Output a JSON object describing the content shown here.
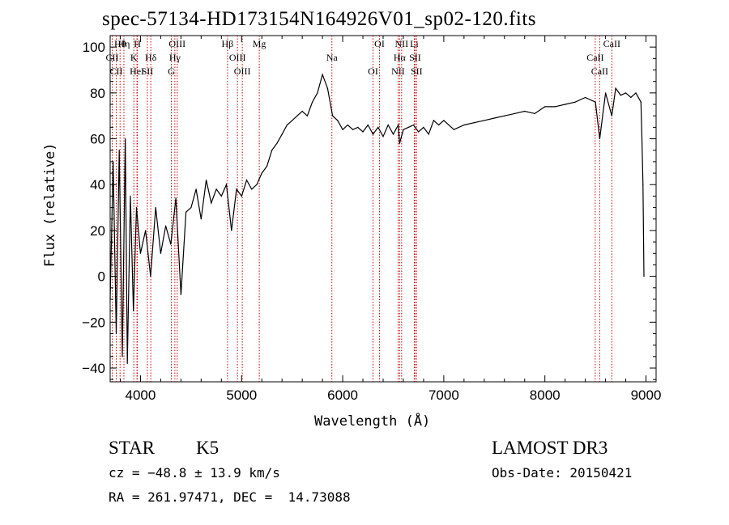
{
  "chart_data": {
    "type": "line",
    "title": "spec-57134-HD173154N164926V01_sp02-120.fits",
    "xlabel": "Wavelength (Å)",
    "ylabel": "Flux (relative)",
    "xlim": [
      3700,
      9100
    ],
    "ylim": [
      -46,
      105
    ],
    "x_ticks": [
      4000,
      5000,
      6000,
      7000,
      8000,
      9000
    ],
    "y_ticks": [
      -40,
      -20,
      0,
      20,
      40,
      60,
      80,
      100
    ],
    "grid": false,
    "series": [
      {
        "name": "flux",
        "x": [
          3700,
          3730,
          3760,
          3790,
          3820,
          3850,
          3870,
          3900,
          3930,
          3960,
          4000,
          4050,
          4100,
          4150,
          4200,
          4250,
          4300,
          4350,
          4400,
          4450,
          4500,
          4550,
          4600,
          4650,
          4700,
          4750,
          4800,
          4850,
          4900,
          4950,
          5000,
          5050,
          5100,
          5150,
          5200,
          5250,
          5300,
          5350,
          5400,
          5450,
          5500,
          5550,
          5600,
          5650,
          5700,
          5750,
          5800,
          5850,
          5900,
          5950,
          6000,
          6050,
          6100,
          6150,
          6200,
          6250,
          6300,
          6350,
          6400,
          6450,
          6500,
          6550,
          6563,
          6600,
          6650,
          6700,
          6750,
          6800,
          6850,
          6900,
          6950,
          7000,
          7100,
          7200,
          7300,
          7400,
          7500,
          7600,
          7700,
          7800,
          7900,
          8000,
          8100,
          8200,
          8300,
          8400,
          8500,
          8542,
          8600,
          8662,
          8700,
          8750,
          8800,
          8850,
          8900,
          8950,
          8960,
          8970,
          8980
        ],
        "y": [
          -10,
          50,
          -25,
          55,
          -35,
          60,
          -38,
          35,
          -15,
          30,
          10,
          20,
          0,
          30,
          10,
          22,
          14,
          34,
          -8,
          28,
          30,
          38,
          25,
          42,
          32,
          38,
          35,
          40,
          20,
          38,
          35,
          42,
          38,
          40,
          45,
          48,
          55,
          58,
          62,
          66,
          68,
          70,
          72,
          70,
          76,
          80,
          88,
          82,
          70,
          68,
          64,
          66,
          64,
          65,
          63,
          66,
          62,
          65,
          61,
          66,
          62,
          66,
          58,
          64,
          65,
          66,
          63,
          65,
          62,
          68,
          66,
          68,
          64,
          66,
          67,
          68,
          69,
          70,
          71,
          72,
          71,
          74,
          74,
          75,
          76,
          78,
          76,
          60,
          80,
          70,
          82,
          79,
          80,
          78,
          80,
          76,
          60,
          40,
          0
        ]
      }
    ],
    "spectral_lines": [
      {
        "label": "Hθ",
        "x": 3798
      },
      {
        "label": "CII",
        "x": 3720
      },
      {
        "label": "CII",
        "x": 3760
      },
      {
        "label": "Hη",
        "x": 3836
      },
      {
        "label": "K",
        "x": 3934
      },
      {
        "label": "HeI",
        "x": 3965
      },
      {
        "label": "H",
        "x": 3969
      },
      {
        "label": "Hδ",
        "x": 4102
      },
      {
        "label": "SII",
        "x": 4068
      },
      {
        "label": "OIII",
        "x": 4363
      },
      {
        "label": "Hγ",
        "x": 4340
      },
      {
        "label": "G",
        "x": 4305
      },
      {
        "label": "Hβ",
        "x": 4861
      },
      {
        "label": "OIII",
        "x": 4959
      },
      {
        "label": "OIII",
        "x": 5007
      },
      {
        "label": "Mg",
        "x": 5175
      },
      {
        "label": "Na",
        "x": 5893
      },
      {
        "label": "OI",
        "x": 6300
      },
      {
        "label": "OI",
        "x": 6364
      },
      {
        "label": "Hα",
        "x": 6563
      },
      {
        "label": "NII",
        "x": 6548
      },
      {
        "label": "NII",
        "x": 6583
      },
      {
        "label": "SII",
        "x": 6716
      },
      {
        "label": "SII",
        "x": 6731
      },
      {
        "label": "Li",
        "x": 6708
      },
      {
        "label": "CaII",
        "x": 8498
      },
      {
        "label": "CaII",
        "x": 8542
      },
      {
        "label": "CaII",
        "x": 8662
      }
    ]
  },
  "info": {
    "class": "STAR",
    "subclass": "K5",
    "survey": "LAMOST DR3",
    "cz": "cz = −48.8 ± 13.9 km/s",
    "obs_date": "Obs-Date: 20150421",
    "coords": "RA = 261.97471, DEC =  14.73088"
  },
  "colors": {
    "line": "#cc0000",
    "spectrum": "#000000"
  }
}
